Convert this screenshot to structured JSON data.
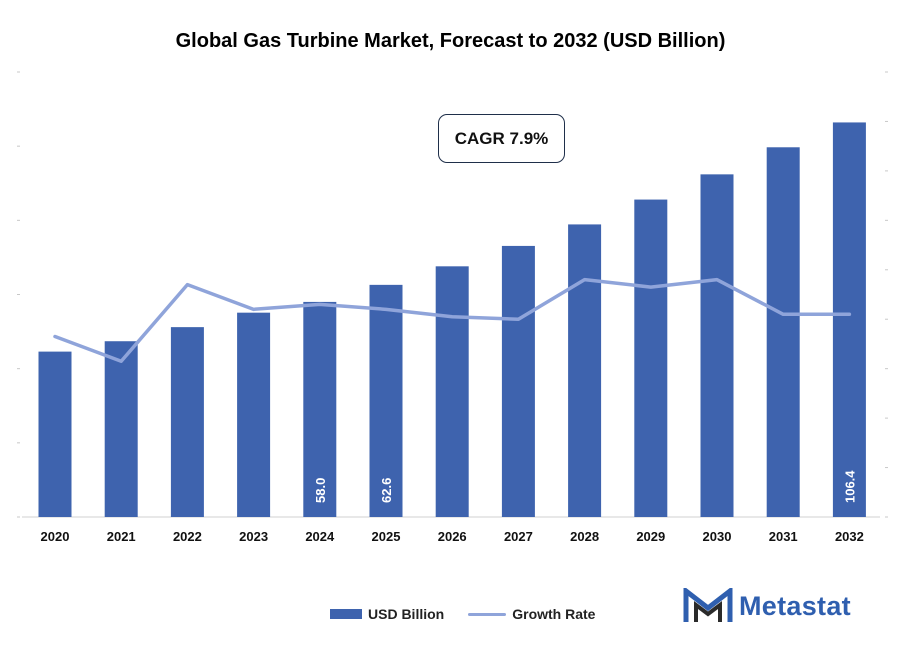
{
  "chart_data": {
    "type": "bar",
    "title": "Global Gas Turbine Market, Forecast to 2032 (USD Billion)",
    "categories": [
      "2020",
      "2021",
      "2022",
      "2023",
      "2024",
      "2025",
      "2026",
      "2027",
      "2028",
      "2029",
      "2030",
      "2031",
      "2032"
    ],
    "series": [
      {
        "name": "USD Billion",
        "type": "bar",
        "color": "#3E63AE",
        "values": [
          44.6,
          47.4,
          51.2,
          55.1,
          58.0,
          62.6,
          67.6,
          73.1,
          78.9,
          85.6,
          92.4,
          99.7,
          106.4
        ],
        "data_labels": {
          "4": "58.0",
          "5": "62.6",
          "12": "106.4"
        }
      },
      {
        "name": "Growth Rate",
        "type": "line",
        "color": "#8FA4DA",
        "values": [
          7.3,
          6.3,
          9.4,
          8.4,
          8.6,
          8.4,
          8.1,
          8.0,
          9.6,
          9.3,
          9.6,
          8.2,
          8.2
        ]
      }
    ],
    "ylim": [
      0,
      120
    ],
    "y2lim": [
      0,
      18
    ],
    "grid": false,
    "legend_position": "bottom",
    "annotation": "CAGR 7.9%"
  },
  "legend": {
    "bar_label": "USD Billion",
    "line_label": "Growth Rate"
  },
  "brand": {
    "name": "Metastat",
    "color": "#2F5FAF"
  }
}
